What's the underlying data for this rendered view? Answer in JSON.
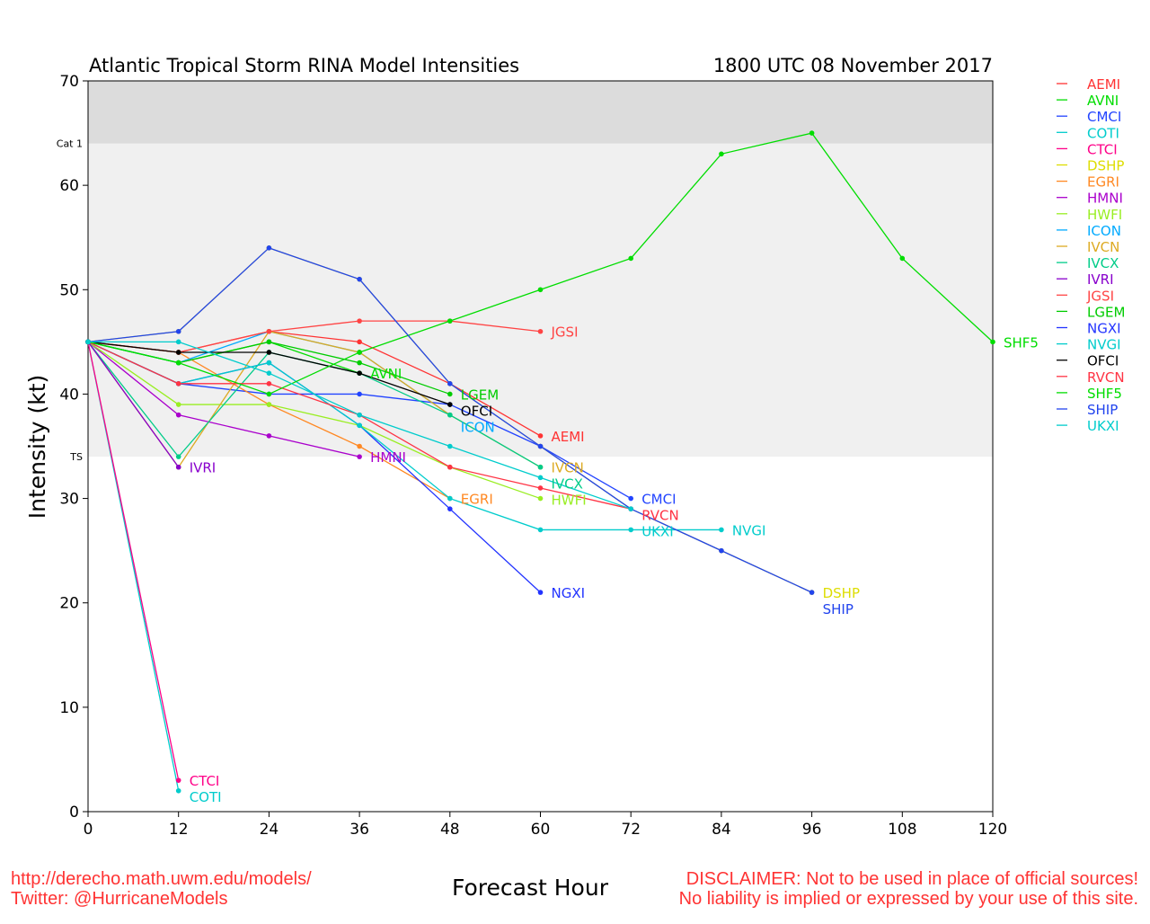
{
  "chart_data": {
    "type": "line",
    "title": "Atlantic Tropical Storm RINA Model Intensities",
    "subtitle": "1800 UTC 08 November 2017",
    "xlabel": "Forecast Hour",
    "ylabel": "Intensity (kt)",
    "xlim": [
      0,
      120
    ],
    "ylim": [
      0,
      70
    ],
    "xticks": [
      0,
      12,
      24,
      36,
      48,
      60,
      72,
      84,
      96,
      108,
      120
    ],
    "yticks": [
      0,
      10,
      20,
      30,
      40,
      50,
      60,
      70
    ],
    "bands": [
      {
        "label": "TS",
        "from": 34,
        "to": 64,
        "color": "#f0f0f0"
      },
      {
        "label": "Cat 1",
        "from": 64,
        "to": 70,
        "color": "#dcdcdc"
      }
    ],
    "legend_position": "right",
    "series": [
      {
        "name": "AEMI",
        "color": "#ff3333",
        "x": [
          0,
          12,
          24,
          36,
          48,
          60
        ],
        "y": [
          45,
          44,
          46,
          45,
          41,
          36
        ]
      },
      {
        "name": "AVNI",
        "color": "#00dd00",
        "x": [
          0,
          12,
          24,
          36
        ],
        "y": [
          45,
          43,
          45,
          42
        ]
      },
      {
        "name": "CMCI",
        "color": "#2244ff",
        "x": [
          0,
          12,
          24,
          36,
          48,
          60,
          72
        ],
        "y": [
          45,
          41,
          40,
          40,
          39,
          35,
          30
        ]
      },
      {
        "name": "COTI",
        "color": "#00cccc",
        "x": [
          0,
          12
        ],
        "y": [
          45,
          2
        ]
      },
      {
        "name": "CTCI",
        "color": "#ff0088",
        "x": [
          0,
          12
        ],
        "y": [
          45,
          3
        ]
      },
      {
        "name": "DSHP",
        "color": "#dddd00",
        "x": [
          0,
          12,
          24,
          36,
          48,
          60,
          72,
          84,
          96
        ],
        "y": [
          45,
          46,
          54,
          51,
          41,
          35,
          29,
          25,
          21
        ]
      },
      {
        "name": "EGRI",
        "color": "#ff8822",
        "x": [
          0,
          12,
          24,
          36,
          48
        ],
        "y": [
          45,
          44,
          39,
          35,
          30
        ]
      },
      {
        "name": "HMNI",
        "color": "#aa00cc",
        "x": [
          0,
          12,
          24,
          36
        ],
        "y": [
          45,
          38,
          36,
          34
        ]
      },
      {
        "name": "HWFI",
        "color": "#99ee22",
        "x": [
          0,
          12,
          24,
          36,
          48,
          60
        ],
        "y": [
          45,
          39,
          39,
          37,
          33,
          30
        ]
      },
      {
        "name": "ICON",
        "color": "#00aaff",
        "x": [
          0,
          12,
          24,
          36,
          48
        ],
        "y": [
          45,
          43,
          46,
          44,
          38
        ]
      },
      {
        "name": "IVCN",
        "color": "#ddaa22",
        "x": [
          0,
          12,
          24,
          36,
          48,
          60
        ],
        "y": [
          45,
          33,
          46,
          44,
          38,
          33
        ]
      },
      {
        "name": "IVCX",
        "color": "#00cc88",
        "x": [
          0,
          12,
          24,
          36,
          48,
          60
        ],
        "y": [
          45,
          34,
          44,
          42,
          38,
          33
        ]
      },
      {
        "name": "IVRI",
        "color": "#8800cc",
        "x": [
          0,
          12
        ],
        "y": [
          45,
          33
        ]
      },
      {
        "name": "JGSI",
        "color": "#ff4444",
        "x": [
          0,
          12,
          24,
          36,
          48,
          60
        ],
        "y": [
          45,
          44,
          46,
          47,
          47,
          46
        ]
      },
      {
        "name": "LGEM",
        "color": "#00cc00",
        "x": [
          0,
          12,
          24,
          36,
          48
        ],
        "y": [
          45,
          43,
          45,
          43,
          40
        ]
      },
      {
        "name": "NGXI",
        "color": "#2233ff",
        "x": [
          0,
          12,
          24,
          36,
          48,
          60
        ],
        "y": [
          45,
          41,
          43,
          37,
          29,
          21
        ]
      },
      {
        "name": "NVGI",
        "color": "#00cccc",
        "x": [
          0,
          12,
          24,
          36,
          48,
          60,
          72,
          84
        ],
        "y": [
          45,
          41,
          43,
          37,
          30,
          27,
          27,
          27
        ]
      },
      {
        "name": "OFCI",
        "color": "#000000",
        "x": [
          0,
          12,
          24,
          36,
          48
        ],
        "y": [
          45,
          44,
          44,
          42,
          39
        ]
      },
      {
        "name": "RVCN",
        "color": "#ff3344",
        "x": [
          0,
          12,
          24,
          36,
          48,
          60,
          72
        ],
        "y": [
          45,
          41,
          41,
          38,
          33,
          31,
          29
        ]
      },
      {
        "name": "SHF5",
        "color": "#00dd00",
        "x": [
          0,
          12,
          24,
          36,
          48,
          60,
          72,
          84,
          96,
          108,
          120
        ],
        "y": [
          45,
          43,
          40,
          44,
          47,
          50,
          53,
          63,
          65,
          53,
          45
        ]
      },
      {
        "name": "SHIP",
        "color": "#2244ee",
        "x": [
          0,
          12,
          24,
          36,
          48,
          60,
          72,
          84,
          96
        ],
        "y": [
          45,
          46,
          54,
          51,
          41,
          35,
          29,
          25,
          21
        ]
      },
      {
        "name": "UKXI",
        "color": "#00cccc",
        "x": [
          0,
          12,
          24,
          36,
          48,
          60,
          72
        ],
        "y": [
          45,
          45,
          42,
          38,
          35,
          32,
          29
        ]
      }
    ]
  },
  "footer": {
    "url": "http://derecho.math.uwm.edu/models/",
    "twitter": "Twitter: @HurricaneModels",
    "disclaimer1": "DISCLAIMER: Not to be used in place of official sources!",
    "disclaimer2": "No liability is implied or expressed by your use of this site."
  }
}
